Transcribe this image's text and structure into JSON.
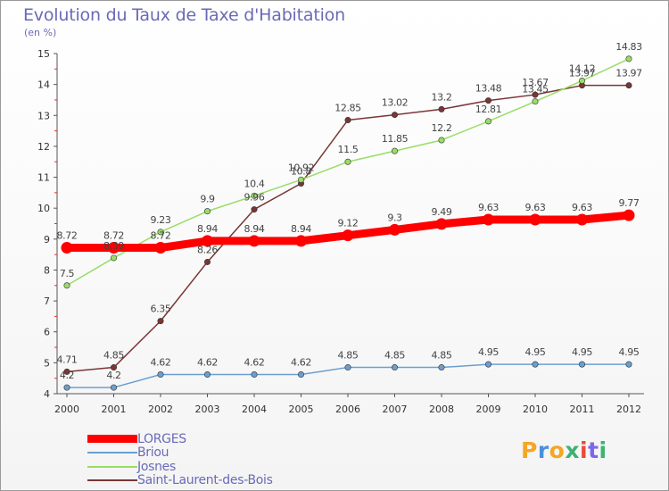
{
  "header": {
    "title": "Evolution du Taux de Taxe d'Habitation",
    "unit": "(en %)"
  },
  "brand": {
    "name": "Proxiti",
    "colors": [
      "#f5a623",
      "#4a90d9",
      "#f5a623",
      "#3cb371",
      "#e94b3c",
      "#7b68ee",
      "#3cb371"
    ]
  },
  "chart_data": {
    "type": "line",
    "title": "Evolution du Taux de Taxe d'Habitation",
    "ylabel": "(en %)",
    "xlabel": "",
    "x": [
      "2000",
      "2001",
      "2002",
      "2003",
      "2004",
      "2005",
      "2006",
      "2007",
      "2008",
      "2009",
      "2010",
      "2011",
      "2012"
    ],
    "ylim": [
      4,
      15
    ],
    "yticks": [
      "4",
      "5",
      "6",
      "7",
      "8",
      "9",
      "10",
      "11",
      "12",
      "13",
      "14",
      "15"
    ],
    "grid": false,
    "legend": "bottom-left",
    "series": [
      {
        "name": "LORGES",
        "color": "#ff0000",
        "values": [
          8.72,
          8.72,
          8.72,
          8.94,
          8.94,
          8.94,
          9.12,
          9.3,
          9.49,
          9.63,
          9.63,
          9.63,
          9.77
        ],
        "labels": [
          "8.72",
          "8.72",
          "8.72",
          "8.94",
          "8.94",
          "8.94",
          "9.12",
          "9.3",
          "9.49",
          "9.63",
          "9.63",
          "9.63",
          "9.77"
        ]
      },
      {
        "name": "Briou",
        "color": "#6b9fcf",
        "values": [
          4.2,
          4.2,
          4.62,
          4.62,
          4.62,
          4.62,
          4.85,
          4.85,
          4.85,
          4.95,
          4.95,
          4.95,
          4.95
        ],
        "labels": [
          "4.2",
          "4.2",
          "4.62",
          "4.62",
          "4.62",
          "4.62",
          "4.85",
          "4.85",
          "4.85",
          "4.95",
          "4.95",
          "4.95",
          "4.95"
        ]
      },
      {
        "name": "Josnes",
        "color": "#99dd66",
        "values": [
          7.5,
          8.39,
          9.23,
          9.9,
          10.4,
          10.92,
          11.5,
          11.85,
          12.2,
          12.81,
          13.45,
          14.12,
          14.83
        ],
        "labels": [
          "7.5",
          "8.39",
          "9.23",
          "9.9",
          "10.4",
          "10.92",
          "11.5",
          "11.85",
          "12.2",
          "12.81",
          "13.45",
          "14.12",
          "14.83"
        ]
      },
      {
        "name": "Saint-Laurent-des-Bois",
        "color": "#7a3535",
        "values": [
          4.71,
          4.85,
          6.35,
          8.26,
          9.96,
          10.8,
          12.85,
          13.02,
          13.2,
          13.48,
          13.67,
          13.97,
          13.97
        ],
        "labels": [
          "4.71",
          "4.85",
          "6.35",
          "8.26",
          "9.96",
          "10.8",
          "12.85",
          "13.02",
          "13.2",
          "13.48",
          "13.67",
          "13.97",
          "13.97"
        ]
      }
    ]
  }
}
